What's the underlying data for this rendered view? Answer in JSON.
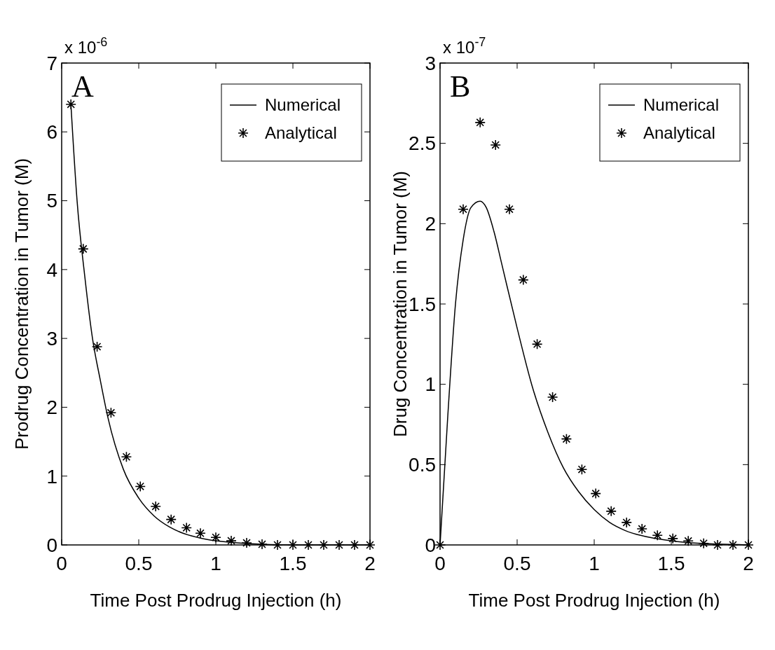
{
  "chart_data": [
    {
      "type": "line",
      "xlabel": "Time Post Prodrug Injection   (h)",
      "ylabel": "Prodrug Concentration in Tumor   (M)",
      "annotations": [
        "A",
        "x 10$^{-6}$"
      ],
      "xlim": [
        0,
        2
      ],
      "xticks": [
        0,
        0.5,
        1,
        1.5,
        2
      ],
      "ylim": [
        0,
        7
      ],
      "yticks": [
        0,
        1,
        2,
        3,
        4,
        5,
        6,
        7
      ],
      "grid": false,
      "legend": "top right",
      "series": [
        {
          "name": "Numerical",
          "type": "line",
          "color": "#000000",
          "line_style": "solid",
          "marker": "none",
          "x": [
            0.06,
            0.1,
            0.15,
            0.2,
            0.25,
            0.3,
            0.4,
            0.5,
            0.6,
            0.7,
            0.8,
            0.9,
            1.0,
            1.2,
            1.5,
            2.0
          ],
          "values": [
            6.4,
            5.0,
            3.9,
            3.0,
            2.4,
            1.85,
            1.1,
            0.68,
            0.42,
            0.26,
            0.16,
            0.1,
            0.06,
            0.02,
            0,
            0
          ]
        },
        {
          "name": "Analytical",
          "type": "scatter",
          "color": "#000000",
          "marker": "cross",
          "x": [
            0.06,
            0.14,
            0.23,
            0.32,
            0.42,
            0.51,
            0.61,
            0.71,
            0.81,
            0.9,
            1.0,
            1.1,
            1.2,
            1.3,
            1.4,
            1.5,
            1.6,
            1.7,
            1.8,
            1.9,
            2.0
          ],
          "values": [
            6.4,
            4.3,
            2.88,
            1.92,
            1.28,
            0.85,
            0.56,
            0.37,
            0.25,
            0.17,
            0.11,
            0.06,
            0.03,
            0.01,
            0,
            0,
            0,
            0,
            0,
            0,
            0
          ]
        }
      ]
    },
    {
      "type": "line",
      "xlabel": "Time Post Prodrug Injection   (h)",
      "ylabel": "Drug Concentration in Tumor   (M)",
      "annotations": [
        "B",
        "x 10$^{-7}$"
      ],
      "xlim": [
        0,
        2
      ],
      "xticks": [
        0,
        0.5,
        1,
        1.5,
        2
      ],
      "ylim": [
        0,
        3
      ],
      "yticks": [
        0,
        0.5,
        1,
        1.5,
        2,
        2.5,
        3
      ],
      "grid": false,
      "legend": "top right",
      "series": [
        {
          "name": "Numerical",
          "type": "line",
          "color": "#000000",
          "line_style": "solid",
          "marker": "none",
          "x": [
            0,
            0.05,
            0.1,
            0.15,
            0.2,
            0.26,
            0.3,
            0.35,
            0.4,
            0.5,
            0.6,
            0.7,
            0.8,
            0.9,
            1.0,
            1.1,
            1.2,
            1.4,
            1.6,
            1.8,
            2.0
          ],
          "values": [
            0,
            0.8,
            1.5,
            1.9,
            2.1,
            2.14,
            2.1,
            1.95,
            1.75,
            1.35,
            0.98,
            0.7,
            0.48,
            0.33,
            0.22,
            0.14,
            0.09,
            0.04,
            0.015,
            0.005,
            0
          ]
        },
        {
          "name": "Analytical",
          "type": "scatter",
          "color": "#000000",
          "marker": "cross",
          "x": [
            0,
            0.15,
            0.26,
            0.36,
            0.45,
            0.54,
            0.63,
            0.73,
            0.82,
            0.92,
            1.01,
            1.11,
            1.21,
            1.31,
            1.41,
            1.51,
            1.61,
            1.71,
            1.8,
            1.9,
            2.0
          ],
          "values": [
            0,
            2.09,
            2.63,
            2.49,
            2.09,
            1.65,
            1.25,
            0.92,
            0.66,
            0.47,
            0.32,
            0.21,
            0.14,
            0.1,
            0.06,
            0.04,
            0.025,
            0.01,
            0,
            0,
            0
          ]
        }
      ]
    }
  ]
}
